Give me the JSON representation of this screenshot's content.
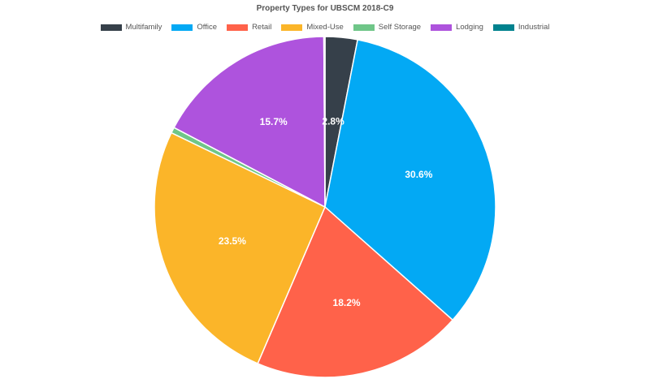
{
  "chart_data": {
    "type": "pie",
    "title": "Property Types for UBSCM 2018-C9",
    "legend_placement": "top",
    "slices": [
      {
        "name": "Multifamily",
        "value": 2.8,
        "label": "2.8%",
        "color": "#36404a"
      },
      {
        "name": "Office",
        "value": 30.6,
        "label": "30.6%",
        "color": "#03a9f4"
      },
      {
        "name": "Retail",
        "value": 18.2,
        "label": "18.2%",
        "color": "#ff624a"
      },
      {
        "name": "Mixed-Use",
        "value": 23.5,
        "label": "23.5%",
        "color": "#fbb529"
      },
      {
        "name": "Self Storage",
        "value": 0.5,
        "label": "",
        "color": "#6fc688"
      },
      {
        "name": "Lodging",
        "value": 15.7,
        "label": "15.7%",
        "color": "#ae53dd"
      },
      {
        "name": "Industrial",
        "value": 0.1,
        "label": "",
        "color": "#00828e"
      }
    ]
  }
}
